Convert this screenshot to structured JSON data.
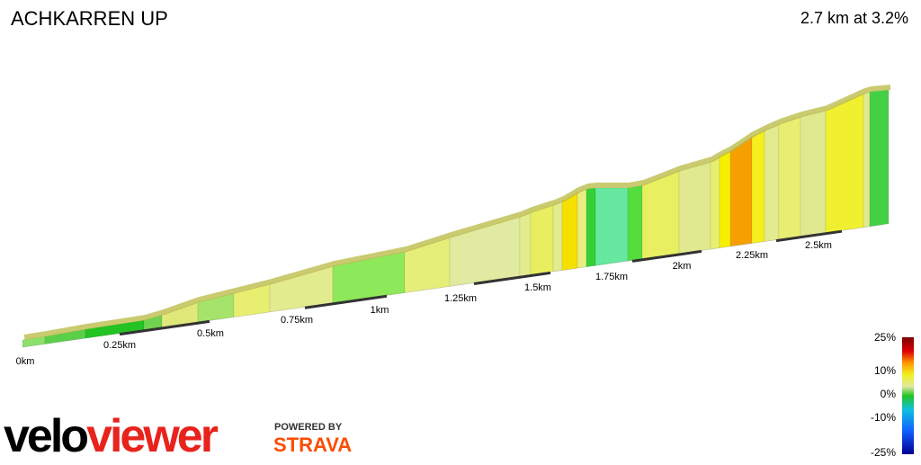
{
  "header": {
    "title": "ACHKARREN UP",
    "summary": "2.7 km at 3.2%"
  },
  "distance_labels": [
    "0km",
    "0.25km",
    "0.5km",
    "0.75km",
    "1km",
    "1.25km",
    "1.5km",
    "1.75km",
    "2km",
    "2.25km",
    "2.5km"
  ],
  "legend": {
    "labels": [
      "25%",
      "10%",
      "0%",
      "-10%",
      "-25%"
    ]
  },
  "branding": {
    "logo_part1": "velo",
    "logo_part2": "viewer",
    "powered_by": "POWERED BY",
    "partner": "STRAVA"
  }
}
